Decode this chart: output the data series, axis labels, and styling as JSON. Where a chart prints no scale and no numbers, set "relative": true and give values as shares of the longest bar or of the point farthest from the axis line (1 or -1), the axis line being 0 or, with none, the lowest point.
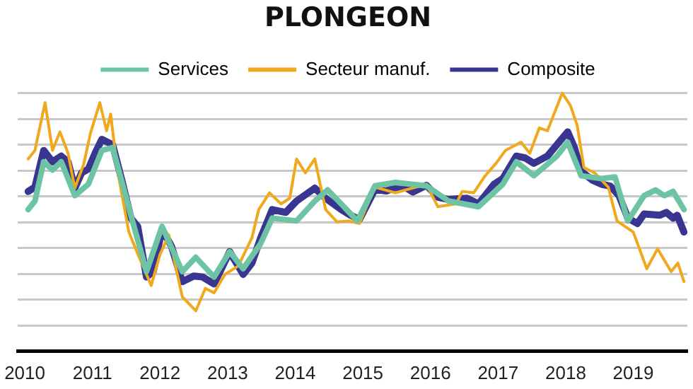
{
  "chart_data": {
    "type": "line",
    "title": "PLONGEON",
    "relative": true,
    "grid": "y",
    "legend": "top",
    "xlim": [
      2009.9,
      2019.8
    ],
    "xticks": [
      2010,
      2011,
      2012,
      2013,
      2014,
      2015,
      2016,
      2017,
      2018,
      2019
    ],
    "series": [
      {
        "name": "Services",
        "color": "#6cc4a4",
        "x": [
          2010.05,
          2010.15,
          2010.28,
          2010.41,
          2010.54,
          2010.74,
          2010.94,
          2011.14,
          2011.3,
          2011.57,
          2011.8,
          2012.03,
          2012.33,
          2012.53,
          2012.8,
          2013.03,
          2013.23,
          2013.49,
          2013.66,
          2014.02,
          2014.29,
          2014.48,
          2014.68,
          2014.92,
          2015.18,
          2015.48,
          2015.94,
          2016.27,
          2016.71,
          2017.07,
          2017.27,
          2017.53,
          2017.87,
          2018.03,
          2018.23,
          2018.53,
          2018.73,
          2018.92,
          2019.16,
          2019.33,
          2019.46,
          2019.59,
          2019.75
        ],
        "values": [
          0.549,
          0.582,
          0.734,
          0.702,
          0.734,
          0.603,
          0.647,
          0.778,
          0.789,
          0.527,
          0.309,
          0.484,
          0.309,
          0.364,
          0.288,
          0.386,
          0.32,
          0.418,
          0.516,
          0.505,
          0.582,
          0.625,
          0.571,
          0.505,
          0.641,
          0.654,
          0.641,
          0.582,
          0.56,
          0.647,
          0.734,
          0.68,
          0.756,
          0.81,
          0.68,
          0.669,
          0.675,
          0.505,
          0.603,
          0.625,
          0.603,
          0.619,
          0.549
        ]
      },
      {
        "name": "Secteur manuf.",
        "color": "#f0a81c",
        "x": [
          2010.05,
          2010.15,
          2010.3,
          2010.41,
          2010.52,
          2010.64,
          2010.74,
          2010.87,
          2010.97,
          2011.11,
          2011.21,
          2011.27,
          2011.37,
          2011.54,
          2011.64,
          2011.87,
          2012.0,
          2012.13,
          2012.33,
          2012.53,
          2012.67,
          2012.8,
          2012.96,
          2013.16,
          2013.36,
          2013.46,
          2013.62,
          2013.79,
          2013.92,
          2014.02,
          2014.15,
          2014.29,
          2014.45,
          2014.62,
          2014.79,
          2014.95,
          2015.18,
          2015.48,
          2015.94,
          2016.11,
          2016.38,
          2016.47,
          2016.64,
          2016.81,
          2016.97,
          2017.11,
          2017.34,
          2017.47,
          2017.61,
          2017.73,
          2017.95,
          2018.07,
          2018.17,
          2018.27,
          2018.43,
          2018.63,
          2018.76,
          2019.0,
          2019.2,
          2019.36,
          2019.56,
          2019.66,
          2019.75
        ],
        "values": [
          0.745,
          0.778,
          0.963,
          0.778,
          0.85,
          0.767,
          0.632,
          0.723,
          0.843,
          0.963,
          0.854,
          0.919,
          0.702,
          0.462,
          0.397,
          0.255,
          0.375,
          0.451,
          0.211,
          0.157,
          0.244,
          0.227,
          0.298,
          0.331,
          0.44,
          0.549,
          0.614,
          0.571,
          0.593,
          0.745,
          0.691,
          0.745,
          0.549,
          0.501,
          0.505,
          0.495,
          0.636,
          0.614,
          0.647,
          0.56,
          0.571,
          0.619,
          0.614,
          0.68,
          0.728,
          0.778,
          0.81,
          0.767,
          0.865,
          0.854,
          1,
          0.952,
          0.876,
          0.712,
          0.691,
          0.636,
          0.505,
          0.462,
          0.32,
          0.397,
          0.309,
          0.342,
          0.27
        ]
      },
      {
        "name": "Composite",
        "color": "#3a3590",
        "x": [
          2010.05,
          2010.15,
          2010.28,
          2010.41,
          2010.54,
          2010.64,
          2010.74,
          2010.84,
          2010.94,
          2011.04,
          2011.14,
          2011.3,
          2011.44,
          2011.57,
          2011.67,
          2011.8,
          2011.9,
          2012.03,
          2012.17,
          2012.33,
          2012.5,
          2012.63,
          2012.8,
          2013.03,
          2013.23,
          2013.36,
          2013.49,
          2013.66,
          2013.86,
          2014.02,
          2014.29,
          2014.45,
          2014.68,
          2014.82,
          2014.95,
          2015.18,
          2015.35,
          2015.48,
          2015.61,
          2015.74,
          2015.94,
          2016.11,
          2016.27,
          2016.54,
          2016.71,
          2016.94,
          2017.07,
          2017.27,
          2017.4,
          2017.53,
          2017.73,
          2017.87,
          2018.03,
          2018.13,
          2018.23,
          2018.4,
          2018.53,
          2018.66,
          2018.79,
          2018.92,
          2019.06,
          2019.16,
          2019.39,
          2019.49,
          2019.59,
          2019.65,
          2019.75
        ],
        "values": [
          0.619,
          0.636,
          0.778,
          0.734,
          0.756,
          0.734,
          0.632,
          0.691,
          0.706,
          0.767,
          0.821,
          0.8,
          0.658,
          0.516,
          0.484,
          0.288,
          0.309,
          0.473,
          0.407,
          0.27,
          0.292,
          0.288,
          0.261,
          0.386,
          0.298,
          0.342,
          0.44,
          0.549,
          0.538,
          0.582,
          0.632,
          0.593,
          0.549,
          0.527,
          0.51,
          0.627,
          0.621,
          0.634,
          0.638,
          0.617,
          0.643,
          0.597,
          0.588,
          0.593,
          0.571,
          0.647,
          0.669,
          0.756,
          0.749,
          0.728,
          0.756,
          0.8,
          0.85,
          0.789,
          0.697,
          0.662,
          0.647,
          0.64,
          0.603,
          0.516,
          0.495,
          0.532,
          0.527,
          0.538,
          0.516,
          0.527,
          0.462
        ]
      }
    ]
  }
}
